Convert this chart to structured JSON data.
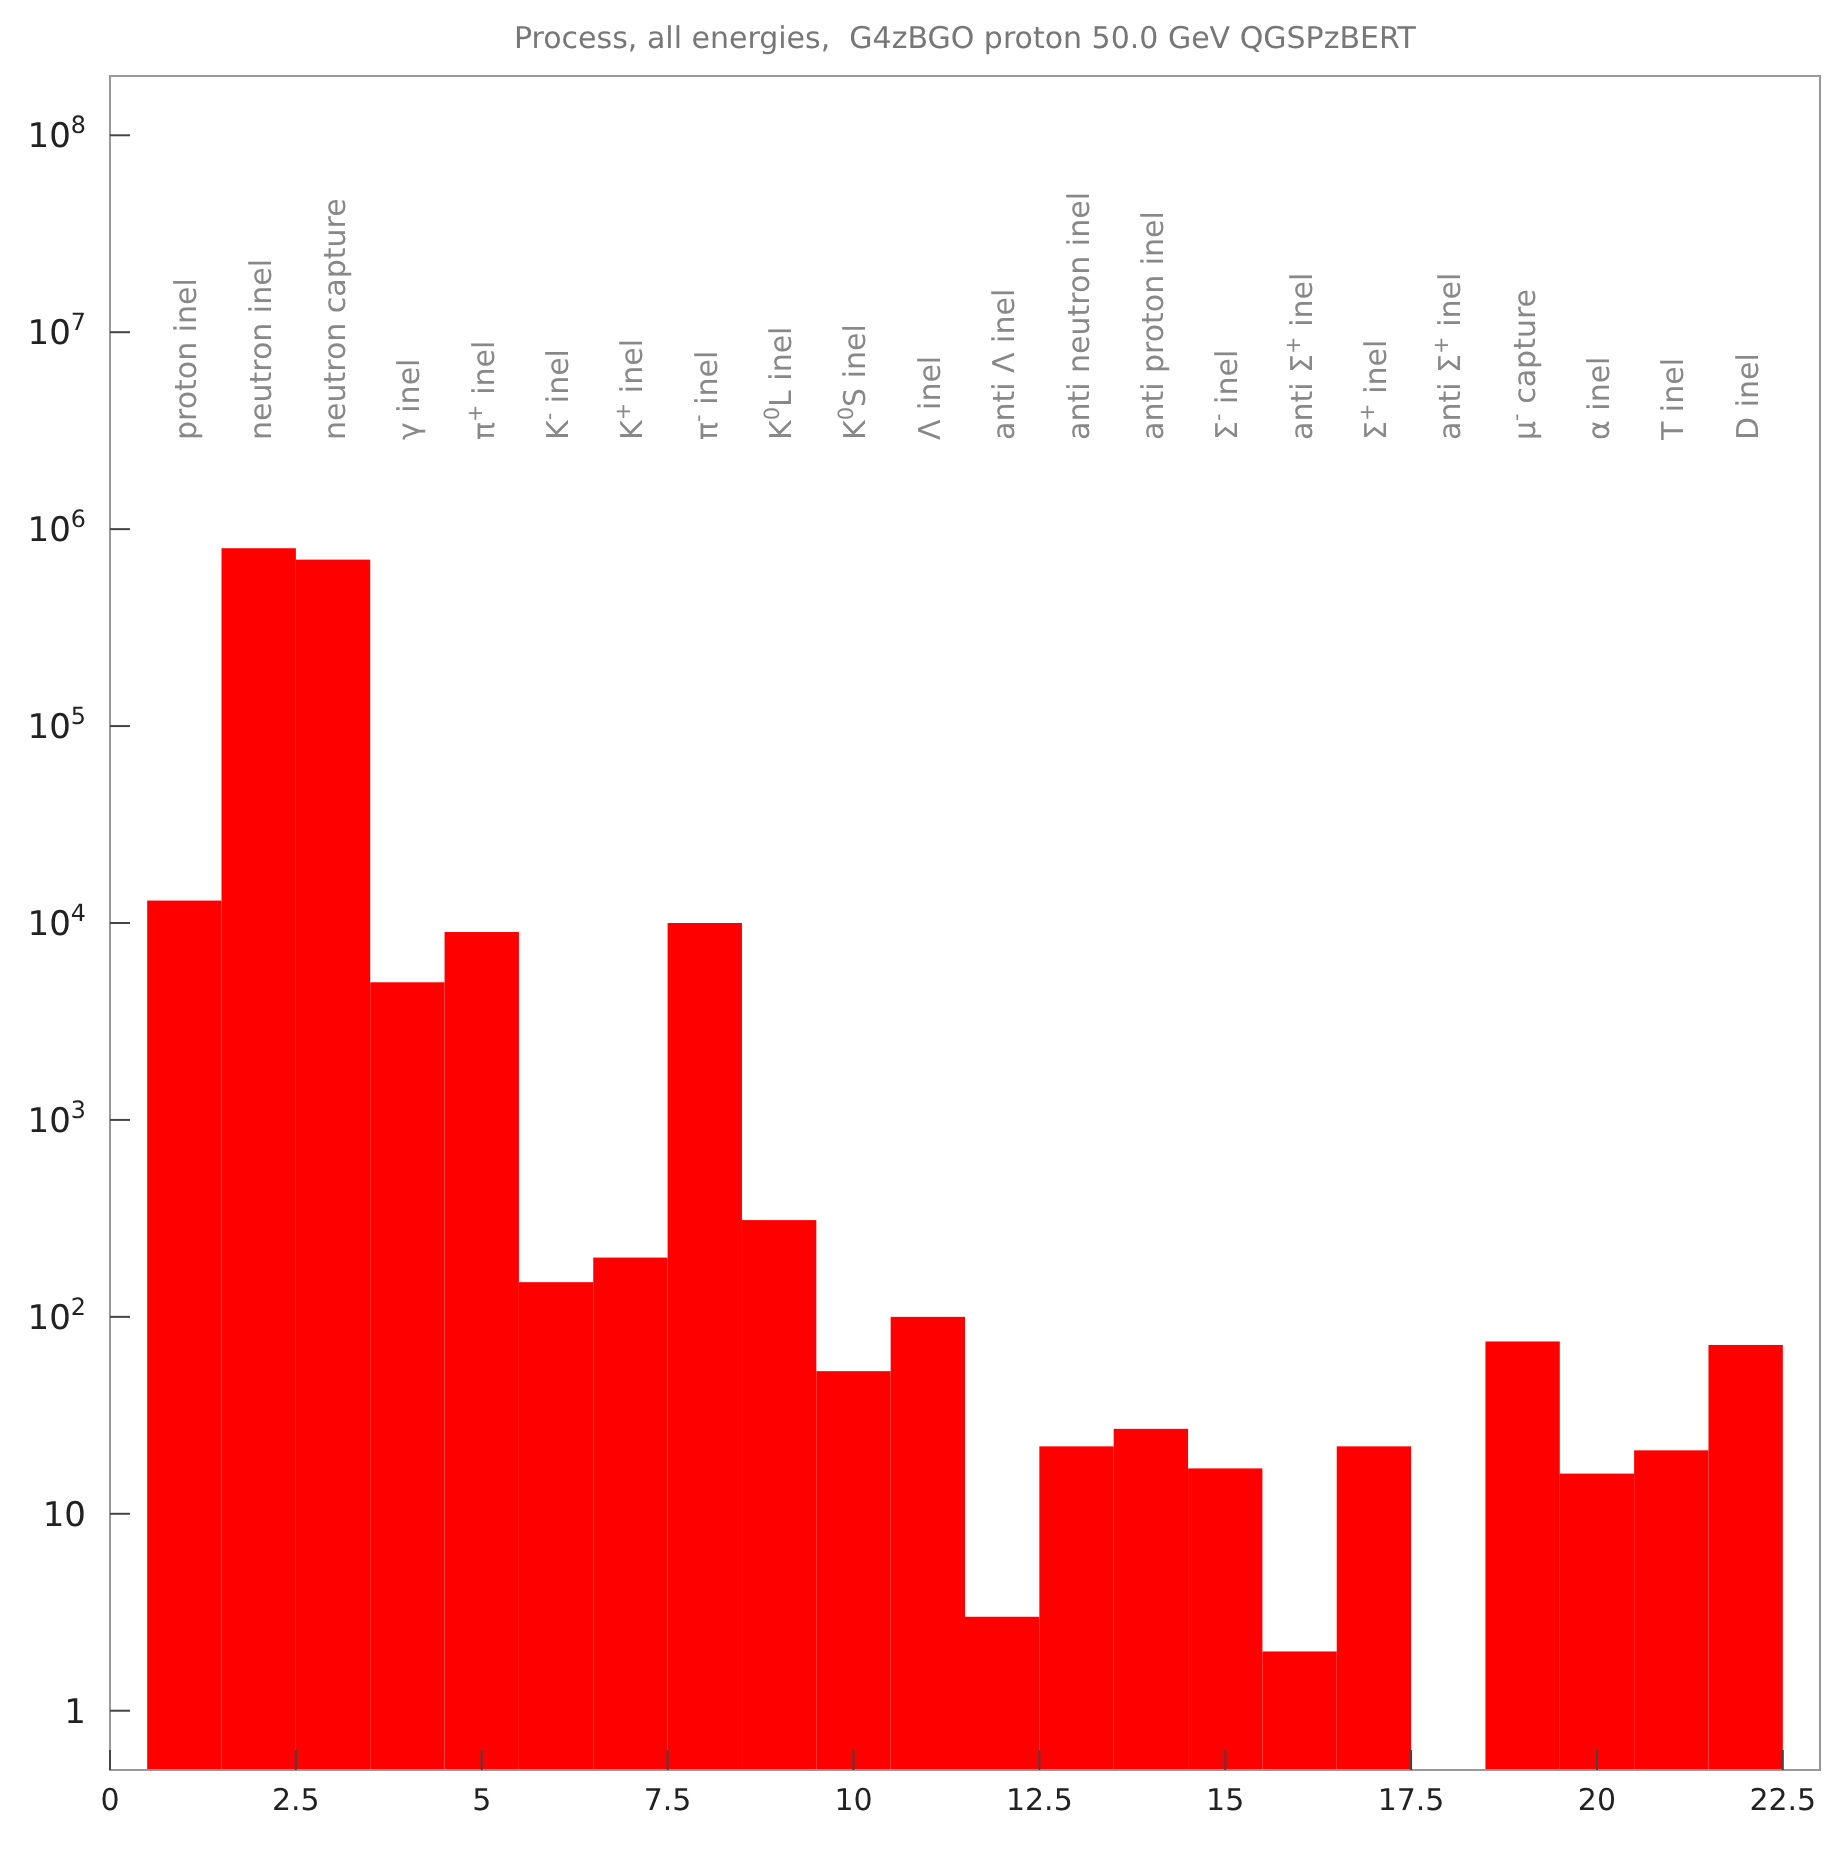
{
  "chart_data": {
    "type": "histogram",
    "title": "Process, all energies,  G4zBGO proton 50.0 GeV QGSPzBERT",
    "bins": [
      0.5,
      1.5,
      2.5,
      3.5,
      4.5,
      5.5,
      6.5,
      7.5,
      8.5,
      9.5,
      10.5,
      11.5,
      12.5,
      13.5,
      14.5,
      15.5,
      16.5,
      17.5,
      18.5,
      19.5,
      20.5,
      21.5,
      22.5
    ],
    "values": [
      13000,
      800000,
      700000,
      5000,
      9000,
      150,
      200,
      10000,
      310,
      53,
      100,
      3,
      22,
      27,
      17,
      2,
      22,
      null,
      75,
      16,
      21,
      72
    ],
    "color": "#ff0000",
    "log": "y",
    "xlim": [
      0,
      23
    ],
    "ylim": [
      0.5,
      200000000
    ],
    "xticks": [
      0,
      2.5,
      5,
      7.5,
      10,
      12.5,
      15,
      17.5,
      20,
      22.5
    ],
    "yticks": [
      1,
      10,
      {
        "value": 100,
        "label": "10$^{2}$"
      },
      {
        "value": 1000,
        "label": "10$^{3}$"
      },
      {
        "value": 10000,
        "label": "10$^{4}$"
      },
      {
        "value": 100000,
        "label": "10$^{5}$"
      },
      {
        "value": 1000000,
        "label": "10$^{6}$"
      },
      {
        "value": 10000000,
        "label": "10$^{7}$"
      },
      {
        "value": 100000000,
        "label": "10$^{8}$"
      }
    ],
    "grid": false,
    "annotations": [
      "proton inel",
      "neutron inel",
      "neutron capture",
      "γ inel",
      "π$^{+}$ inel",
      "K$^{-}$ inel",
      "K$^{+}$ inel",
      "π$^{-}$ inel",
      "K$^{0}$L inel",
      "K$^{0}$S inel",
      "Λ inel",
      "anti Λ inel",
      "anti neutron inel",
      "anti proton inel",
      "Σ$^{-}$ inel",
      "anti Σ$^{+}$ inel",
      "Σ$^{+}$ inel",
      "anti Σ$^{+}$ inel",
      "μ$^{-}$ capture",
      "α inel",
      "T inel",
      "D inel"
    ]
  }
}
